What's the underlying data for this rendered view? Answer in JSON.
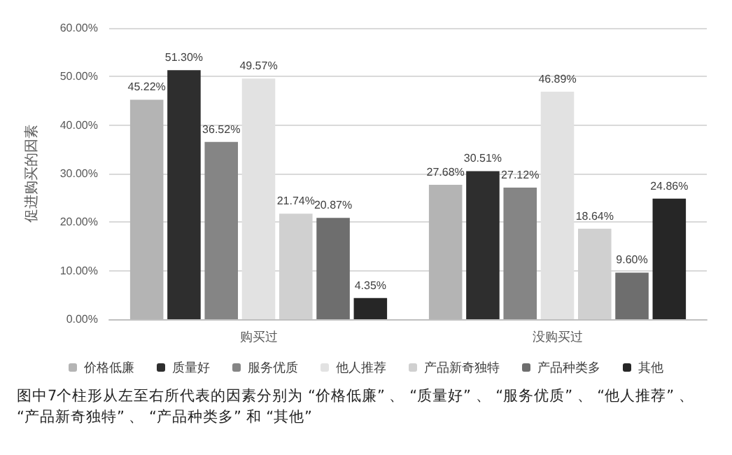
{
  "chart_data": {
    "type": "bar",
    "ylabel": "促进购买的因素",
    "categories": [
      "购买过",
      "没购买过"
    ],
    "series": [
      {
        "name": "价格低廉",
        "color": "#b4b4b4",
        "values": [
          45.22,
          27.68
        ],
        "value_labels": [
          "45.22%",
          "27.68%"
        ]
      },
      {
        "name": "质量好",
        "color": "#2e2e2e",
        "values": [
          51.3,
          30.51
        ],
        "value_labels": [
          "51.30%",
          "30.51%"
        ]
      },
      {
        "name": "服务优质",
        "color": "#858585",
        "values": [
          36.52,
          27.12
        ],
        "value_labels": [
          "36.52%",
          "27.12%"
        ]
      },
      {
        "name": "他人推荐",
        "color": "#e2e2e2",
        "values": [
          49.57,
          46.89
        ],
        "value_labels": [
          "49.57%",
          "46.89%"
        ]
      },
      {
        "name": "产品新奇独特",
        "color": "#d0d0d0",
        "values": [
          21.74,
          18.64
        ],
        "value_labels": [
          "21.74%",
          "18.64%"
        ]
      },
      {
        "name": "产品种类多",
        "color": "#6e6e6e",
        "values": [
          20.87,
          9.6
        ],
        "value_labels": [
          "20.87%",
          "9.60%"
        ]
      },
      {
        "name": "其他",
        "color": "#262626",
        "values": [
          4.35,
          24.86
        ],
        "value_labels": [
          "4.35%",
          "24.86%"
        ]
      }
    ],
    "ylim": [
      0,
      60
    ],
    "yticks": [
      {
        "value": 0,
        "label": "0.00%"
      },
      {
        "value": 10,
        "label": "10.00%"
      },
      {
        "value": 20,
        "label": "20.00%"
      },
      {
        "value": 30,
        "label": "30.00%"
      },
      {
        "value": 40,
        "label": "40.00%"
      },
      {
        "value": 50,
        "label": "50.00%"
      },
      {
        "value": 60,
        "label": "60.00%"
      }
    ],
    "grid": "y",
    "legend": "bottom",
    "annotations": [
      "图中7个柱形从左至右所代表的因素分别为 “价格低廉” 、 “质量好” 、 “服务优质” 、 “他人推荐” 、 “产品新奇独特” 、 “产品种类多” 和 “其他”"
    ]
  }
}
